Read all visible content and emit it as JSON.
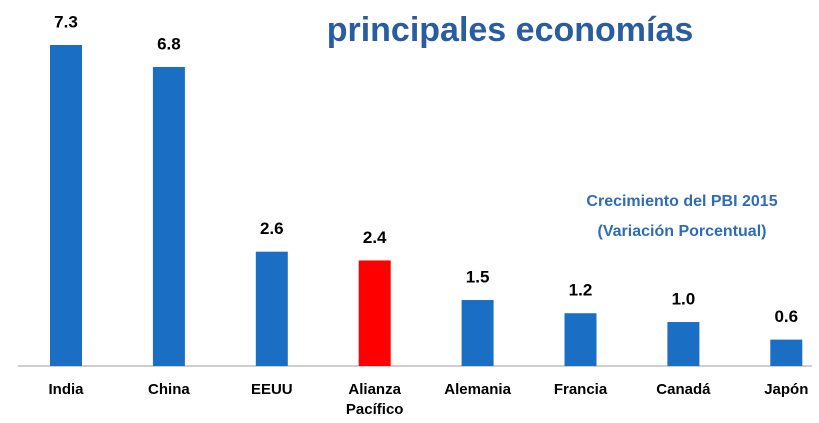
{
  "chart_data": {
    "type": "bar",
    "title": "principales economías",
    "annotation": [
      "Crecimiento del PBI 2015",
      "(Variación Porcentual)"
    ],
    "categories": [
      "India",
      "China",
      "EEUU",
      "Alianza\nPacífico",
      "Alemania",
      "Francia",
      "Canadá",
      "Japón"
    ],
    "values": [
      7.3,
      6.8,
      2.6,
      2.4,
      1.5,
      1.2,
      1.0,
      0.6
    ],
    "value_labels": [
      "7.3",
      "6.8",
      "2.6",
      "2.4",
      "1.5",
      "1.2",
      "1.0",
      "0.6"
    ],
    "colors": [
      "#1a6fc4",
      "#1a6fc4",
      "#1a6fc4",
      "#ff0000",
      "#1a6fc4",
      "#1a6fc4",
      "#1a6fc4",
      "#1a6fc4"
    ]
  }
}
